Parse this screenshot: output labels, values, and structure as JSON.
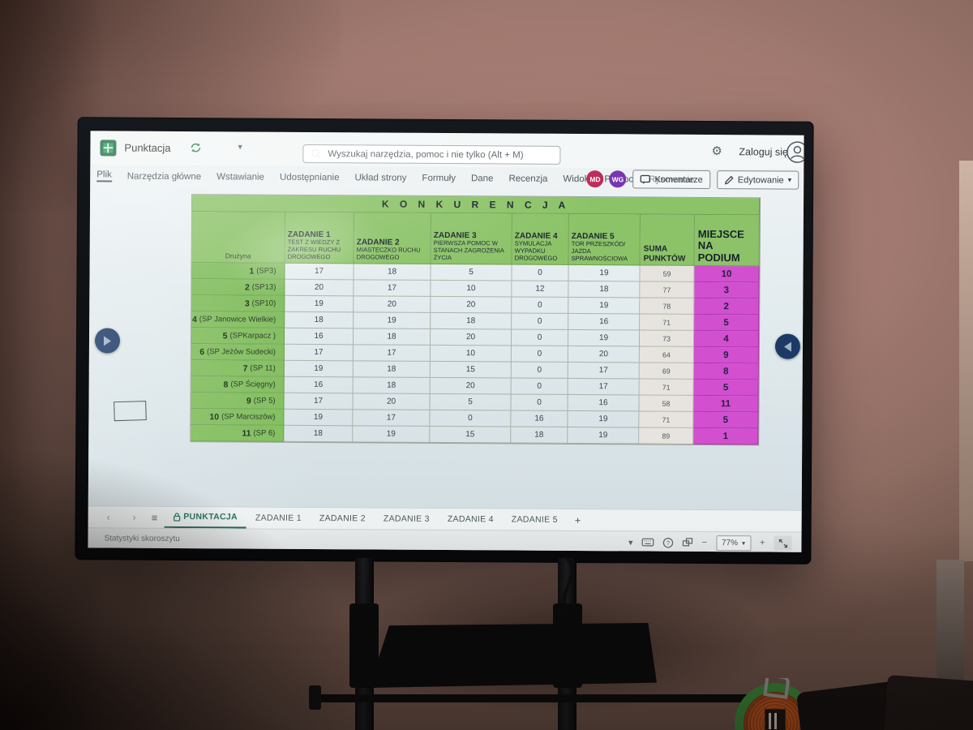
{
  "app": {
    "title": "Punktacja",
    "title_chevron": "▾",
    "search_placeholder": "Wyszukaj narzędzia, pomoc i nie tylko (Alt + M)",
    "sign_in": "Zaloguj się",
    "menu": [
      "Plik",
      "Narzędzia główne",
      "Wstawianie",
      "Udostępnianie",
      "Układ strony",
      "Formuły",
      "Dane",
      "Recenzja",
      "Widok",
      "Pomoc",
      "Rysowanie"
    ],
    "active_menu": "Plik",
    "avatars": [
      {
        "initials": "MD",
        "color": "#c02b5b"
      },
      {
        "initials": "WG",
        "color": "#7a35b2"
      }
    ],
    "comments_label": "Komentarze",
    "editing_label": "Edytowanie",
    "editing_chevron": "▾",
    "gear_glyph": "⚙"
  },
  "colors": {
    "excel_green": "#1e7145",
    "header_green": "#8cc368",
    "team_green": "#80bd5c",
    "place_magenta": "#d24fd0",
    "active_tab_green": "#1a6e5a"
  },
  "table": {
    "title": "K O N K U R E N C J A",
    "team_header": "Drużyna",
    "columns": [
      {
        "title": "ZADANIE 1",
        "subtitle": "TEST Z WIEDZY Z ZAKRESU RUCHU DROGOWEGO"
      },
      {
        "title": "ZADANIE 2",
        "subtitle": "MIASTECZKO RUCHU DROGOWEGO"
      },
      {
        "title": "ZADANIE 3",
        "subtitle": "PIERWSZA POMOC W STANACH ZAGROŻENIA ŻYCIA"
      },
      {
        "title": "ZADANIE 4",
        "subtitle": "SYMULACJA WYPADKU DROGOWEGO"
      },
      {
        "title": "ZADANIE 5",
        "subtitle": "TOR PRZESZKÓD/ JAZDA SPRAWNOŚCIOWA"
      }
    ],
    "sum_header": "SUMA PUNKTÓW",
    "place_header": "MIEJSCE NA PODIUM",
    "rows": [
      {
        "num": "1",
        "name": "(SP3)",
        "scores": [
          17,
          18,
          5,
          0,
          19
        ],
        "sum": 59,
        "place": 10
      },
      {
        "num": "2",
        "name": "(SP13)",
        "scores": [
          20,
          17,
          10,
          12,
          18
        ],
        "sum": 77,
        "place": 3
      },
      {
        "num": "3",
        "name": "(SP10)",
        "scores": [
          19,
          20,
          20,
          0,
          19
        ],
        "sum": 78,
        "place": 2
      },
      {
        "num": "4",
        "name": "(SP Janowice Wielkie)",
        "scores": [
          18,
          19,
          18,
          0,
          16
        ],
        "sum": 71,
        "place": 5
      },
      {
        "num": "5",
        "name": "(SPKarpacz )",
        "scores": [
          16,
          18,
          20,
          0,
          19
        ],
        "sum": 73,
        "place": 4
      },
      {
        "num": "6",
        "name": "(SP Jeżów Sudecki)",
        "scores": [
          17,
          17,
          10,
          0,
          20
        ],
        "sum": 64,
        "place": 9
      },
      {
        "num": "7",
        "name": "(SP 11)",
        "scores": [
          19,
          18,
          15,
          0,
          17
        ],
        "sum": 69,
        "place": 8
      },
      {
        "num": "8",
        "name": "(SP Ścięgny)",
        "scores": [
          16,
          18,
          20,
          0,
          17
        ],
        "sum": 71,
        "place": 5
      },
      {
        "num": "9",
        "name": "(SP 5)",
        "scores": [
          17,
          20,
          5,
          0,
          16
        ],
        "sum": 58,
        "place": 11
      },
      {
        "num": "10",
        "name": "(SP Marciszów)",
        "scores": [
          19,
          17,
          0,
          16,
          19
        ],
        "sum": 71,
        "place": 5
      },
      {
        "num": "11",
        "name": "(SP 6)",
        "scores": [
          18,
          19,
          15,
          18,
          19
        ],
        "sum": 89,
        "place": 1
      }
    ]
  },
  "sheet_bar": {
    "prev_glyph": "‹",
    "next_glyph": "›",
    "menu_glyph": "≡",
    "tabs": [
      {
        "label": "PUNKTACJA",
        "active": true,
        "locked": true
      },
      {
        "label": "ZADANIE 1",
        "active": false
      },
      {
        "label": "ZADANIE 2",
        "active": false
      },
      {
        "label": "ZADANIE 3",
        "active": false
      },
      {
        "label": "ZADANIE 4",
        "active": false
      },
      {
        "label": "ZADANIE 5",
        "active": false
      }
    ],
    "add_label": "+"
  },
  "status_bar": {
    "left_text": "Statystyki skoroszytu",
    "zoom_value": "77%",
    "zoom_chevron": "▾",
    "chevron": "▾",
    "minus": "−",
    "plus": "+"
  }
}
